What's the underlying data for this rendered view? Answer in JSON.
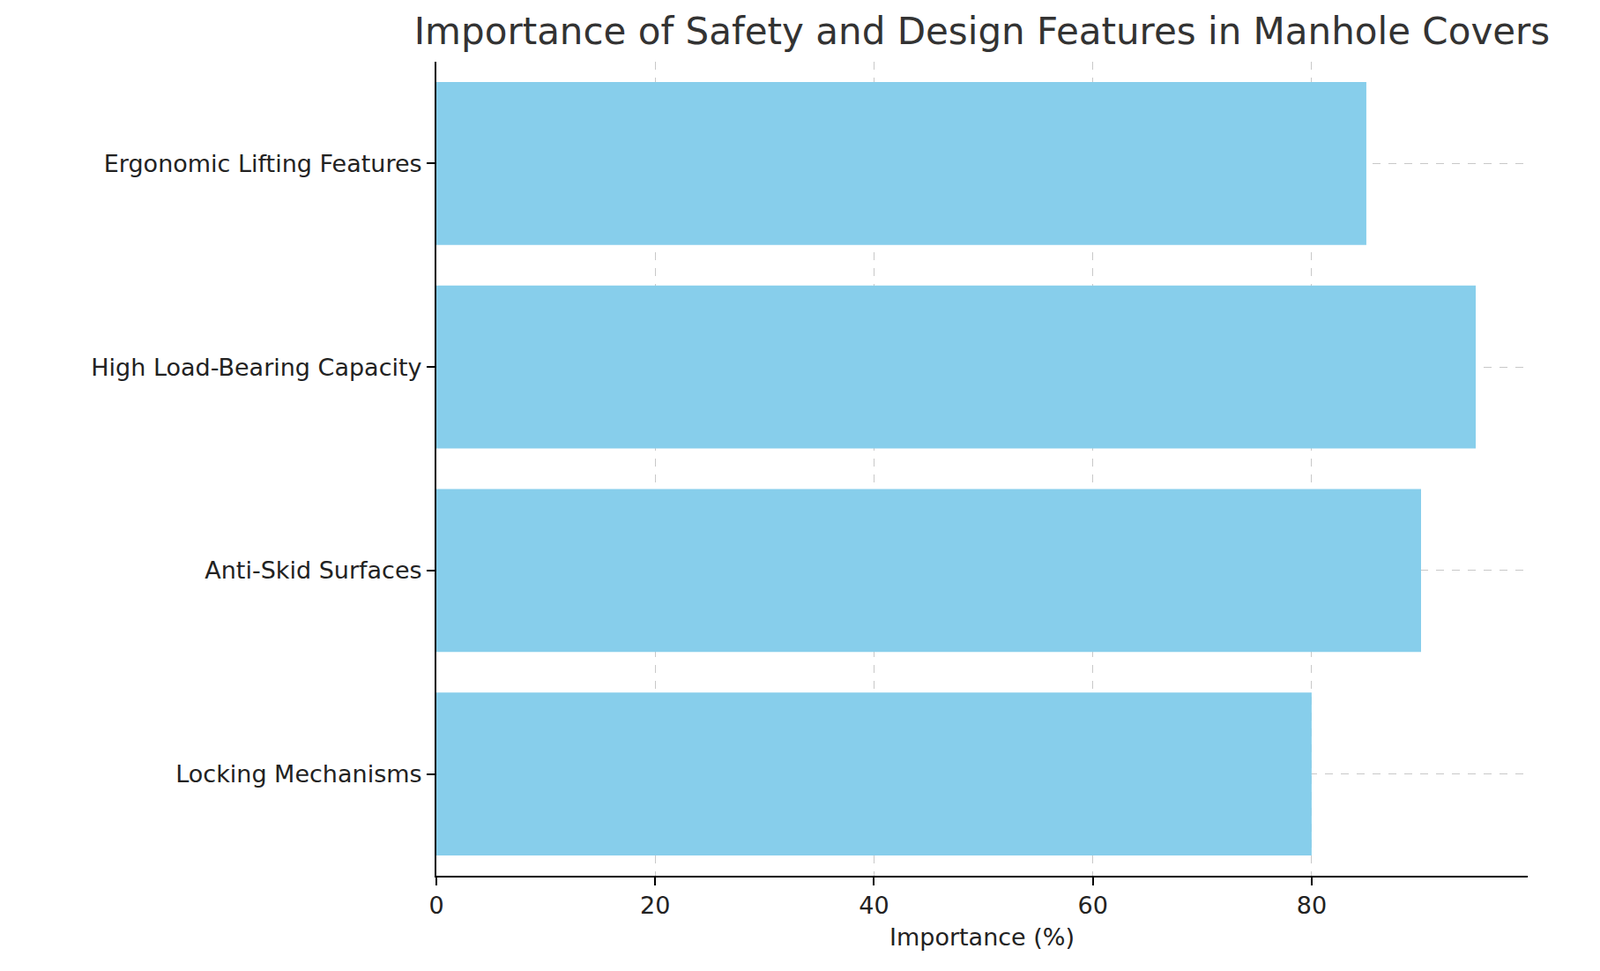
{
  "chart_data": {
    "type": "bar",
    "orientation": "horizontal",
    "title": "Importance of Safety and Design Features in Manhole Covers",
    "x_label": "Importance (%)",
    "categories": [
      "Locking Mechanisms",
      "Anti-Skid Surfaces",
      "High Load-Bearing Capacity",
      "Ergonomic Lifting Features"
    ],
    "values": [
      80,
      90,
      95,
      85
    ],
    "color": "#87ceeb",
    "xlim": [
      0,
      99.75
    ],
    "xticks": [
      0,
      20,
      40,
      60,
      80
    ],
    "grid": true
  }
}
